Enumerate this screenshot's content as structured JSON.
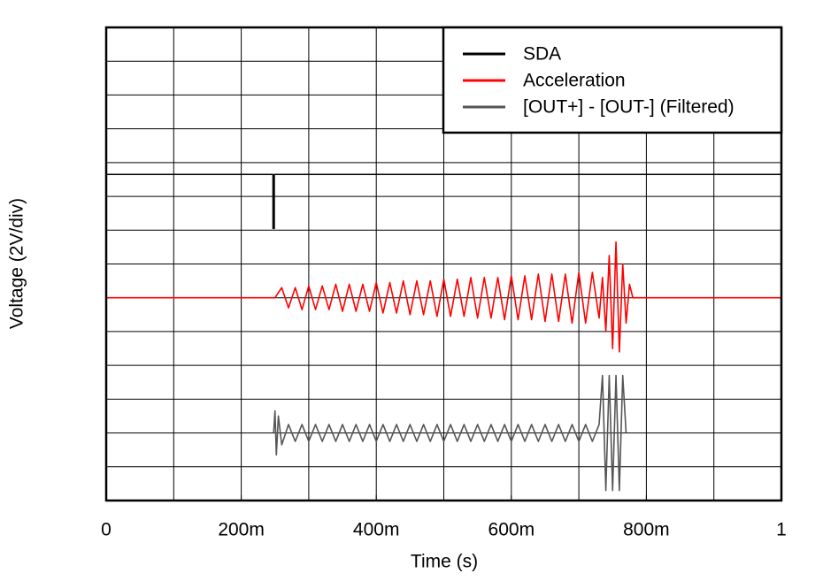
{
  "chart_data": {
    "type": "line",
    "xlabel": "Time (s)",
    "ylabel": "Voltage (2V/div)",
    "xlim": [
      0,
      1
    ],
    "ylim": [
      0,
      28
    ],
    "xticks": [
      0,
      {
        "value": 0.2,
        "label": "200m"
      },
      {
        "value": 0.4,
        "label": "400m"
      },
      {
        "value": 0.6,
        "label": "600m"
      },
      {
        "value": 0.8,
        "label": "800m"
      },
      1
    ],
    "xgrid": [
      0.1,
      0.2,
      0.3,
      0.4,
      0.5,
      0.6,
      0.7,
      0.8,
      0.9
    ],
    "ygrid": [
      2,
      4,
      6,
      8,
      10,
      12,
      14,
      16,
      18,
      20,
      22,
      24,
      26
    ],
    "legend": "upper right",
    "series": [
      {
        "name": "SDA",
        "color": "#000000",
        "x": [
          0,
          0.247,
          0.247,
          0.249,
          0.249,
          1
        ],
        "values": [
          19.3,
          19.3,
          16.1,
          16.1,
          19.3,
          19.3
        ]
      },
      {
        "name": "Acceleration",
        "color": "#ff0000",
        "x": [
          0,
          0.25,
          0.26,
          0.27,
          0.28,
          0.29,
          0.3,
          0.31,
          0.32,
          0.33,
          0.34,
          0.35,
          0.36,
          0.37,
          0.38,
          0.39,
          0.4,
          0.41,
          0.42,
          0.43,
          0.44,
          0.45,
          0.46,
          0.47,
          0.48,
          0.49,
          0.5,
          0.51,
          0.52,
          0.53,
          0.54,
          0.55,
          0.56,
          0.57,
          0.58,
          0.59,
          0.6,
          0.61,
          0.62,
          0.63,
          0.64,
          0.65,
          0.66,
          0.67,
          0.68,
          0.69,
          0.7,
          0.71,
          0.72,
          0.73,
          0.735,
          0.74,
          0.745,
          0.75,
          0.755,
          0.76,
          0.765,
          0.77,
          0.775,
          0.78,
          1
        ],
        "values": [
          12,
          12,
          12.6,
          11.4,
          12.6,
          11.3,
          12.7,
          11.3,
          12.7,
          11.3,
          12.8,
          11.2,
          12.8,
          11.2,
          12.8,
          11.2,
          12.9,
          11.1,
          12.9,
          11.1,
          13.0,
          11.0,
          13.0,
          11.0,
          13.0,
          10.9,
          13.1,
          10.9,
          13.1,
          10.9,
          13.2,
          10.8,
          13.2,
          10.8,
          13.2,
          10.7,
          13.3,
          10.7,
          13.3,
          10.7,
          13.4,
          10.6,
          13.4,
          10.6,
          13.4,
          10.5,
          13.5,
          10.5,
          13.5,
          10.8,
          13.2,
          10.0,
          14.5,
          9.0,
          15.3,
          8.8,
          14.0,
          10.5,
          12.8,
          12,
          12
        ]
      },
      {
        "name": "[OUT+] - [OUT-] (Filtered)",
        "color": "#555555",
        "x": [
          0.248,
          0.25,
          0.252,
          0.255,
          0.26,
          0.27,
          0.28,
          0.29,
          0.3,
          0.31,
          0.32,
          0.33,
          0.34,
          0.35,
          0.36,
          0.37,
          0.38,
          0.39,
          0.4,
          0.41,
          0.42,
          0.43,
          0.44,
          0.45,
          0.46,
          0.47,
          0.48,
          0.49,
          0.5,
          0.51,
          0.52,
          0.53,
          0.54,
          0.55,
          0.56,
          0.57,
          0.58,
          0.59,
          0.6,
          0.61,
          0.62,
          0.63,
          0.64,
          0.65,
          0.66,
          0.67,
          0.68,
          0.69,
          0.7,
          0.71,
          0.72,
          0.73,
          0.735,
          0.74,
          0.745,
          0.75,
          0.755,
          0.76,
          0.765,
          0.77
        ],
        "values": [
          4,
          5.3,
          2.7,
          5.0,
          3.3,
          4.5,
          3.5,
          4.5,
          3.5,
          4.5,
          3.5,
          4.5,
          3.5,
          4.5,
          3.5,
          4.5,
          3.5,
          4.5,
          3.5,
          4.5,
          3.5,
          4.5,
          3.5,
          4.5,
          3.5,
          4.5,
          3.5,
          4.5,
          3.5,
          4.5,
          3.5,
          4.5,
          3.5,
          4.5,
          3.5,
          4.5,
          3.5,
          4.5,
          3.5,
          4.5,
          3.5,
          4.5,
          3.5,
          4.5,
          3.5,
          4.5,
          3.5,
          4.5,
          3.5,
          4.5,
          3.5,
          4.5,
          7.4,
          0.6,
          7.4,
          0.6,
          7.4,
          0.6,
          7.4,
          4.0
        ]
      }
    ]
  }
}
